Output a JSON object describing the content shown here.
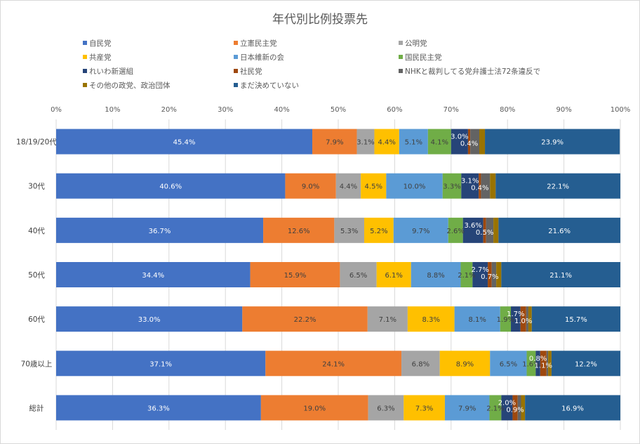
{
  "chart_data": {
    "type": "bar",
    "orientation": "horizontal",
    "stacked": "percent",
    "title": "年代別比例投票先",
    "xlabel": "",
    "ylabel": "",
    "xlim": [
      0,
      100
    ],
    "x_ticks": [
      "0%",
      "10%",
      "20%",
      "30%",
      "40%",
      "50%",
      "60%",
      "70%",
      "80%",
      "90%",
      "100%"
    ],
    "grid": "vertical",
    "legend_position": "top",
    "categories": [
      "18/19/20代",
      "30代",
      "40代",
      "50代",
      "60代",
      "70歳以上",
      "総計"
    ],
    "series": [
      {
        "name": "自民党",
        "color": "#4472C4",
        "label_color": "#ffffff",
        "values": [
          45.4,
          40.6,
          36.7,
          34.4,
          33.0,
          37.1,
          36.3
        ],
        "labels": [
          "45.4%",
          "40.6%",
          "36.7%",
          "34.4%",
          "33.0%",
          "37.1%",
          "36.3%"
        ]
      },
      {
        "name": "立憲民主党",
        "color": "#ED7D31",
        "label_color": "#404040",
        "values": [
          7.9,
          9.0,
          12.6,
          15.9,
          22.2,
          24.1,
          19.0
        ],
        "labels": [
          "7.9%",
          "9.0%",
          "12.6%",
          "15.9%",
          "22.2%",
          "24.1%",
          "19.0%"
        ]
      },
      {
        "name": "公明党",
        "color": "#A5A5A5",
        "label_color": "#404040",
        "values": [
          3.1,
          4.4,
          5.3,
          6.5,
          7.1,
          6.8,
          6.3
        ],
        "labels": [
          "3.1%",
          "4.4%",
          "5.3%",
          "6.5%",
          "7.1%",
          "6.8%",
          "6.3%"
        ]
      },
      {
        "name": "共産党",
        "color": "#FFC000",
        "label_color": "#404040",
        "values": [
          4.4,
          4.5,
          5.2,
          6.1,
          8.3,
          8.9,
          7.3
        ],
        "labels": [
          "4.4%",
          "4.5%",
          "5.2%",
          "6.1%",
          "8.3%",
          "8.9%",
          "7.3%"
        ]
      },
      {
        "name": "日本維新の会",
        "color": "#5B9BD5",
        "label_color": "#404040",
        "values": [
          5.1,
          10.0,
          9.7,
          8.8,
          8.1,
          6.5,
          7.9
        ],
        "labels": [
          "5.1%",
          "10.0%",
          "9.7%",
          "8.8%",
          "8.1%",
          "6.5%",
          "7.9%"
        ]
      },
      {
        "name": "国民民主党",
        "color": "#70AD47",
        "label_color": "#404040",
        "values": [
          4.1,
          3.3,
          2.6,
          2.1,
          1.9,
          1.6,
          2.1
        ],
        "labels": [
          "4.1%",
          "3.3%",
          "2.6%",
          "2.1%",
          "1.9%",
          "1.6%",
          "2.1%"
        ]
      },
      {
        "name": "れいわ新選組",
        "color": "#264478",
        "label_color": "#ffffff",
        "values": [
          3.0,
          3.1,
          3.6,
          2.7,
          1.7,
          0.8,
          2.0
        ],
        "labels": [
          "3.0%",
          "3.1%",
          "3.6%",
          "2.7%",
          "1.7%",
          "0.8%",
          "2.0%"
        ]
      },
      {
        "name": "社民党",
        "color": "#9E480E",
        "label_color": "#ffffff",
        "values": [
          0.4,
          0.4,
          0.5,
          0.7,
          1.0,
          1.1,
          0.9
        ],
        "labels": [
          "0.4%",
          "0.4%",
          "0.5%",
          "0.7%",
          "1.0%",
          "1.1%",
          "0.9%"
        ]
      },
      {
        "name": "NHKと裁判してる党弁護士法72条違反で",
        "color": "#636363",
        "label_color": "#ffffff",
        "values": [
          1.6,
          1.6,
          1.3,
          0.8,
          0.4,
          0.3,
          0.6
        ],
        "labels": []
      },
      {
        "name": "その他の政党、政治団体",
        "color": "#997300",
        "label_color": "#ffffff",
        "values": [
          1.0,
          1.0,
          0.9,
          0.9,
          0.6,
          0.6,
          0.7
        ],
        "labels": []
      },
      {
        "name": "まだ決めていない",
        "color": "#255E91",
        "label_color": "#ffffff",
        "values": [
          23.9,
          22.1,
          21.6,
          21.1,
          15.7,
          12.2,
          16.9
        ],
        "labels": [
          "23.9%",
          "22.1%",
          "21.6%",
          "21.1%",
          "15.7%",
          "12.2%",
          "16.9%"
        ]
      }
    ]
  }
}
